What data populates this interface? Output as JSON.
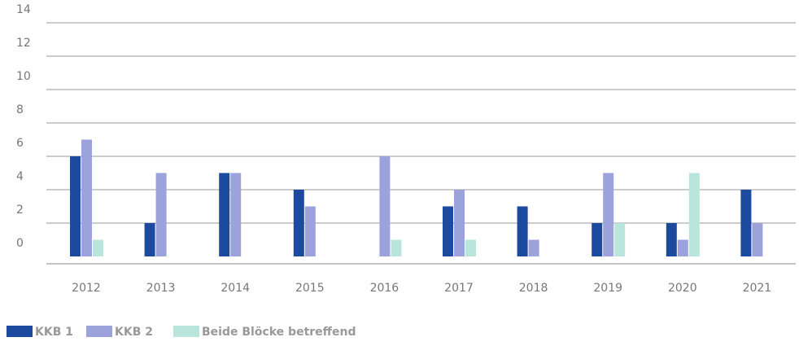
{
  "chart_data": {
    "type": "bar",
    "categories": [
      "2012",
      "2013",
      "2014",
      "2015",
      "2016",
      "2017",
      "2018",
      "2019",
      "2020",
      "2021"
    ],
    "series": [
      {
        "name": "KKB 1",
        "color": "#1c4a9e",
        "values": [
          6,
          2,
          5,
          4,
          0,
          3,
          3,
          2,
          2,
          4
        ]
      },
      {
        "name": "KKB 2",
        "color": "#9ba2dc",
        "values": [
          7,
          5,
          5,
          3,
          6,
          4,
          1,
          5,
          1,
          2
        ]
      },
      {
        "name": "Beide Blöcke betreffend",
        "color": "#b9e5dc",
        "values": [
          1,
          0,
          0,
          0,
          1,
          1,
          0,
          2,
          5,
          0
        ]
      }
    ],
    "ylim": [
      0,
      14
    ],
    "yticks": [
      0,
      2,
      4,
      6,
      8,
      10,
      12,
      14
    ],
    "grid": true,
    "legend": "bottom-left"
  }
}
